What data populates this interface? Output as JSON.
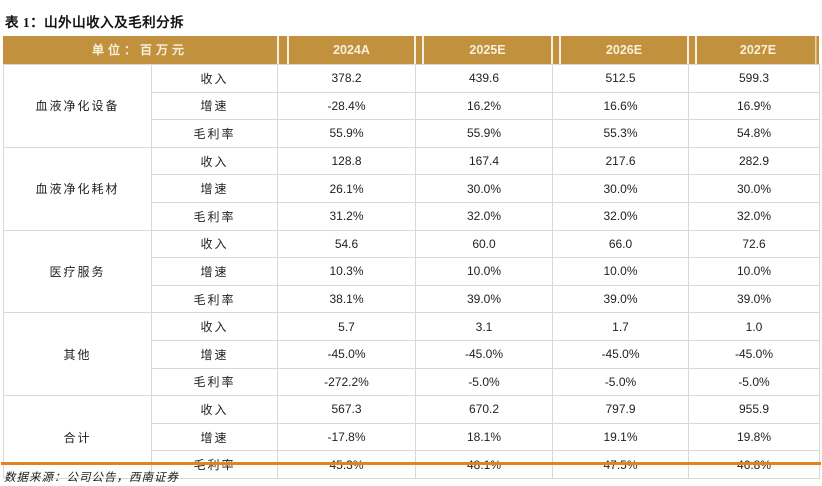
{
  "page": {
    "title": "表 1：山外山收入及毛利分拆",
    "footer": "数据来源：公司公告，西南证券"
  },
  "table": {
    "unit_label": "单位：百万元",
    "columns": [
      "2024A",
      "2025E",
      "2026E",
      "2027E"
    ],
    "metric_labels": [
      "收入",
      "增速",
      "毛利率"
    ],
    "groups": [
      {
        "name": "血液净化设备",
        "metrics": [
          {
            "label": "收入",
            "values": [
              "378.2",
              "439.6",
              "512.5",
              "599.3"
            ]
          },
          {
            "label": "增速",
            "values": [
              "-28.4%",
              "16.2%",
              "16.6%",
              "16.9%"
            ]
          },
          {
            "label": "毛利率",
            "values": [
              "55.9%",
              "55.9%",
              "55.3%",
              "54.8%"
            ]
          }
        ]
      },
      {
        "name": "血液净化耗材",
        "metrics": [
          {
            "label": "收入",
            "values": [
              "128.8",
              "167.4",
              "217.6",
              "282.9"
            ]
          },
          {
            "label": "增速",
            "values": [
              "26.1%",
              "30.0%",
              "30.0%",
              "30.0%"
            ]
          },
          {
            "label": "毛利率",
            "values": [
              "31.2%",
              "32.0%",
              "32.0%",
              "32.0%"
            ]
          }
        ]
      },
      {
        "name": "医疗服务",
        "metrics": [
          {
            "label": "收入",
            "values": [
              "54.6",
              "60.0",
              "66.0",
              "72.6"
            ]
          },
          {
            "label": "增速",
            "values": [
              "10.3%",
              "10.0%",
              "10.0%",
              "10.0%"
            ]
          },
          {
            "label": "毛利率",
            "values": [
              "38.1%",
              "39.0%",
              "39.0%",
              "39.0%"
            ]
          }
        ]
      },
      {
        "name": "其他",
        "metrics": [
          {
            "label": "收入",
            "values": [
              "5.7",
              "3.1",
              "1.7",
              "1.0"
            ]
          },
          {
            "label": "增速",
            "values": [
              "-45.0%",
              "-45.0%",
              "-45.0%",
              "-45.0%"
            ]
          },
          {
            "label": "毛利率",
            "values": [
              "-272.2%",
              "-5.0%",
              "-5.0%",
              "-5.0%"
            ]
          }
        ]
      },
      {
        "name": "合计",
        "metrics": [
          {
            "label": "收入",
            "values": [
              "567.3",
              "670.2",
              "797.9",
              "955.9"
            ]
          },
          {
            "label": "增速",
            "values": [
              "-17.8%",
              "18.1%",
              "19.1%",
              "19.8%"
            ]
          },
          {
            "label": "毛利率",
            "values": [
              "45.3%",
              "48.1%",
              "47.5%",
              "46.8%"
            ]
          }
        ]
      }
    ]
  },
  "colors": {
    "header_bg": "#C2913E",
    "header_text": "#F8F0DA",
    "table_border": "#D8D8D8",
    "bottom_rule": "#E0841C",
    "title_text": "#111111",
    "body_text": "#1F1F1F"
  }
}
